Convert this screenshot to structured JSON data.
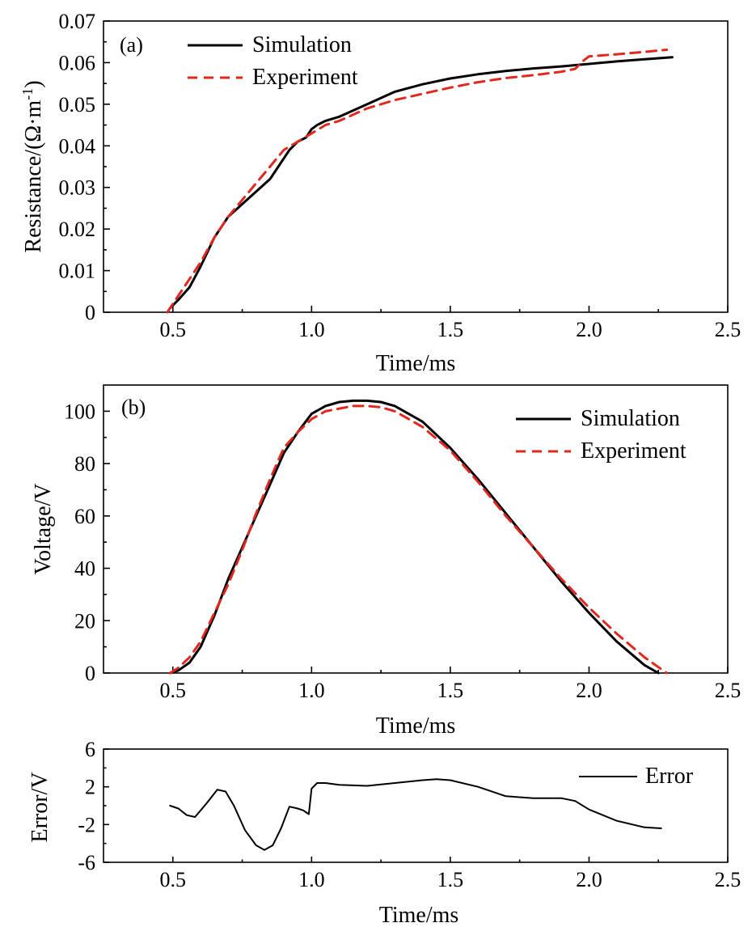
{
  "chart_data": [
    {
      "type": "line",
      "panel_label": "(a)",
      "xlabel": "Time/ms",
      "ylabel": "Resistance/(Ω·m",
      "ylabel_sup": "-1",
      "ylabel_close": ")",
      "xlim": [
        0.25,
        2.5
      ],
      "ylim": [
        0,
        0.07
      ],
      "xticks": [
        0.5,
        1.0,
        1.5,
        2.0,
        2.5
      ],
      "xtick_labels": [
        "0.5",
        "1.0",
        "1.5",
        "2.0",
        "2.5"
      ],
      "yticks": [
        0,
        0.01,
        0.02,
        0.03,
        0.04,
        0.05,
        0.06,
        0.07
      ],
      "ytick_labels": [
        "0",
        "0.01",
        "0.02",
        "0.03",
        "0.04",
        "0.05",
        "0.06",
        "0.07"
      ],
      "legend": "top-left",
      "grid": false,
      "series": [
        {
          "name": "Simulation",
          "color": "#000000",
          "dash": "solid",
          "x": [
            0.49,
            0.52,
            0.56,
            0.6,
            0.65,
            0.7,
            0.75,
            0.8,
            0.85,
            0.88,
            0.92,
            0.95,
            0.98,
            1.0,
            1.02,
            1.05,
            1.1,
            1.2,
            1.3,
            1.4,
            1.5,
            1.6,
            1.7,
            1.8,
            1.9,
            2.0,
            2.1,
            2.2,
            2.3
          ],
          "y": [
            0.001,
            0.003,
            0.006,
            0.011,
            0.018,
            0.023,
            0.026,
            0.029,
            0.032,
            0.035,
            0.039,
            0.041,
            0.042,
            0.044,
            0.045,
            0.046,
            0.047,
            0.05,
            0.053,
            0.0548,
            0.0562,
            0.0572,
            0.058,
            0.0586,
            0.0591,
            0.0597,
            0.0603,
            0.0608,
            0.0613
          ]
        },
        {
          "name": "Experiment",
          "color": "#e0281e",
          "dash": "dashed",
          "x": [
            0.48,
            0.52,
            0.56,
            0.6,
            0.65,
            0.7,
            0.75,
            0.8,
            0.85,
            0.9,
            0.95,
            1.0,
            1.05,
            1.1,
            1.2,
            1.3,
            1.4,
            1.5,
            1.6,
            1.7,
            1.8,
            1.9,
            1.95,
            1.98,
            2.0,
            2.1,
            2.2,
            2.28
          ],
          "y": [
            0.0,
            0.004,
            0.008,
            0.012,
            0.018,
            0.023,
            0.027,
            0.031,
            0.035,
            0.039,
            0.041,
            0.043,
            0.045,
            0.046,
            0.049,
            0.051,
            0.0525,
            0.054,
            0.0553,
            0.0563,
            0.057,
            0.0578,
            0.0585,
            0.0605,
            0.0615,
            0.062,
            0.0626,
            0.0631
          ]
        }
      ]
    },
    {
      "type": "line",
      "panel_label": "(b)",
      "xlabel": "Time/ms",
      "ylabel": "Voltage/V",
      "xlim": [
        0.25,
        2.5
      ],
      "ylim": [
        0,
        110
      ],
      "xticks": [
        0.5,
        1.0,
        1.5,
        2.0,
        2.5
      ],
      "xtick_labels": [
        "0.5",
        "1.0",
        "1.5",
        "2.0",
        "2.5"
      ],
      "yticks": [
        0,
        20,
        40,
        60,
        80,
        100
      ],
      "ytick_labels": [
        "0",
        "20",
        "40",
        "60",
        "80",
        "100"
      ],
      "legend": "top-right",
      "grid": false,
      "series": [
        {
          "name": "Simulation",
          "color": "#000000",
          "dash": "solid",
          "x": [
            0.49,
            0.52,
            0.56,
            0.6,
            0.65,
            0.7,
            0.75,
            0.8,
            0.85,
            0.9,
            0.95,
            1.0,
            1.05,
            1.1,
            1.15,
            1.2,
            1.25,
            1.3,
            1.4,
            1.5,
            1.6,
            1.7,
            1.8,
            1.9,
            2.0,
            2.1,
            2.2,
            2.25
          ],
          "y": [
            0,
            1,
            4,
            10,
            22,
            36,
            48,
            60,
            72,
            84,
            92,
            99,
            102,
            103.5,
            104,
            104,
            103.5,
            102,
            96,
            86,
            74,
            61,
            48,
            35,
            23,
            12,
            3,
            0
          ]
        },
        {
          "name": "Experiment",
          "color": "#e0281e",
          "dash": "dashed",
          "x": [
            0.49,
            0.52,
            0.56,
            0.6,
            0.65,
            0.7,
            0.75,
            0.8,
            0.85,
            0.9,
            0.95,
            1.0,
            1.05,
            1.1,
            1.15,
            1.2,
            1.25,
            1.3,
            1.4,
            1.5,
            1.6,
            1.7,
            1.8,
            1.9,
            2.0,
            2.1,
            2.2,
            2.28
          ],
          "y": [
            0,
            2,
            6,
            12,
            23,
            34,
            47,
            61,
            74,
            86,
            92,
            97,
            100,
            101,
            102,
            102,
            101.5,
            100,
            94,
            85,
            73,
            60,
            48,
            36,
            25,
            15,
            6,
            0
          ]
        }
      ]
    },
    {
      "type": "line",
      "panel_label": "",
      "xlabel": "Time/ms",
      "ylabel": "Error/V",
      "xlim": [
        0.25,
        2.5
      ],
      "ylim": [
        -6,
        6
      ],
      "xticks": [
        0.5,
        1.0,
        1.5,
        2.0,
        2.5
      ],
      "xtick_labels": [
        "0.5",
        "1.0",
        "1.5",
        "2.0",
        "2.5"
      ],
      "yticks": [
        -6,
        -2,
        2,
        6
      ],
      "ytick_labels": [
        "-6",
        "-2",
        "2",
        "6"
      ],
      "legend": "top-right",
      "grid": false,
      "series": [
        {
          "name": "Error",
          "color": "#000000",
          "dash": "solid",
          "x": [
            0.49,
            0.52,
            0.55,
            0.58,
            0.62,
            0.66,
            0.69,
            0.72,
            0.76,
            0.8,
            0.83,
            0.86,
            0.89,
            0.92,
            0.95,
            0.97,
            0.99,
            1.0,
            1.02,
            1.05,
            1.1,
            1.2,
            1.3,
            1.4,
            1.45,
            1.5,
            1.6,
            1.7,
            1.8,
            1.9,
            1.95,
            2.0,
            2.1,
            2.2,
            2.26
          ],
          "y": [
            0.0,
            -0.3,
            -1.0,
            -1.2,
            0.2,
            1.7,
            1.5,
            0.0,
            -2.6,
            -4.2,
            -4.7,
            -4.2,
            -2.4,
            -0.1,
            -0.3,
            -0.5,
            -0.9,
            1.8,
            2.4,
            2.4,
            2.2,
            2.1,
            2.4,
            2.7,
            2.8,
            2.7,
            2.0,
            1.0,
            0.8,
            0.8,
            0.5,
            -0.4,
            -1.6,
            -2.3,
            -2.4
          ]
        }
      ]
    }
  ]
}
